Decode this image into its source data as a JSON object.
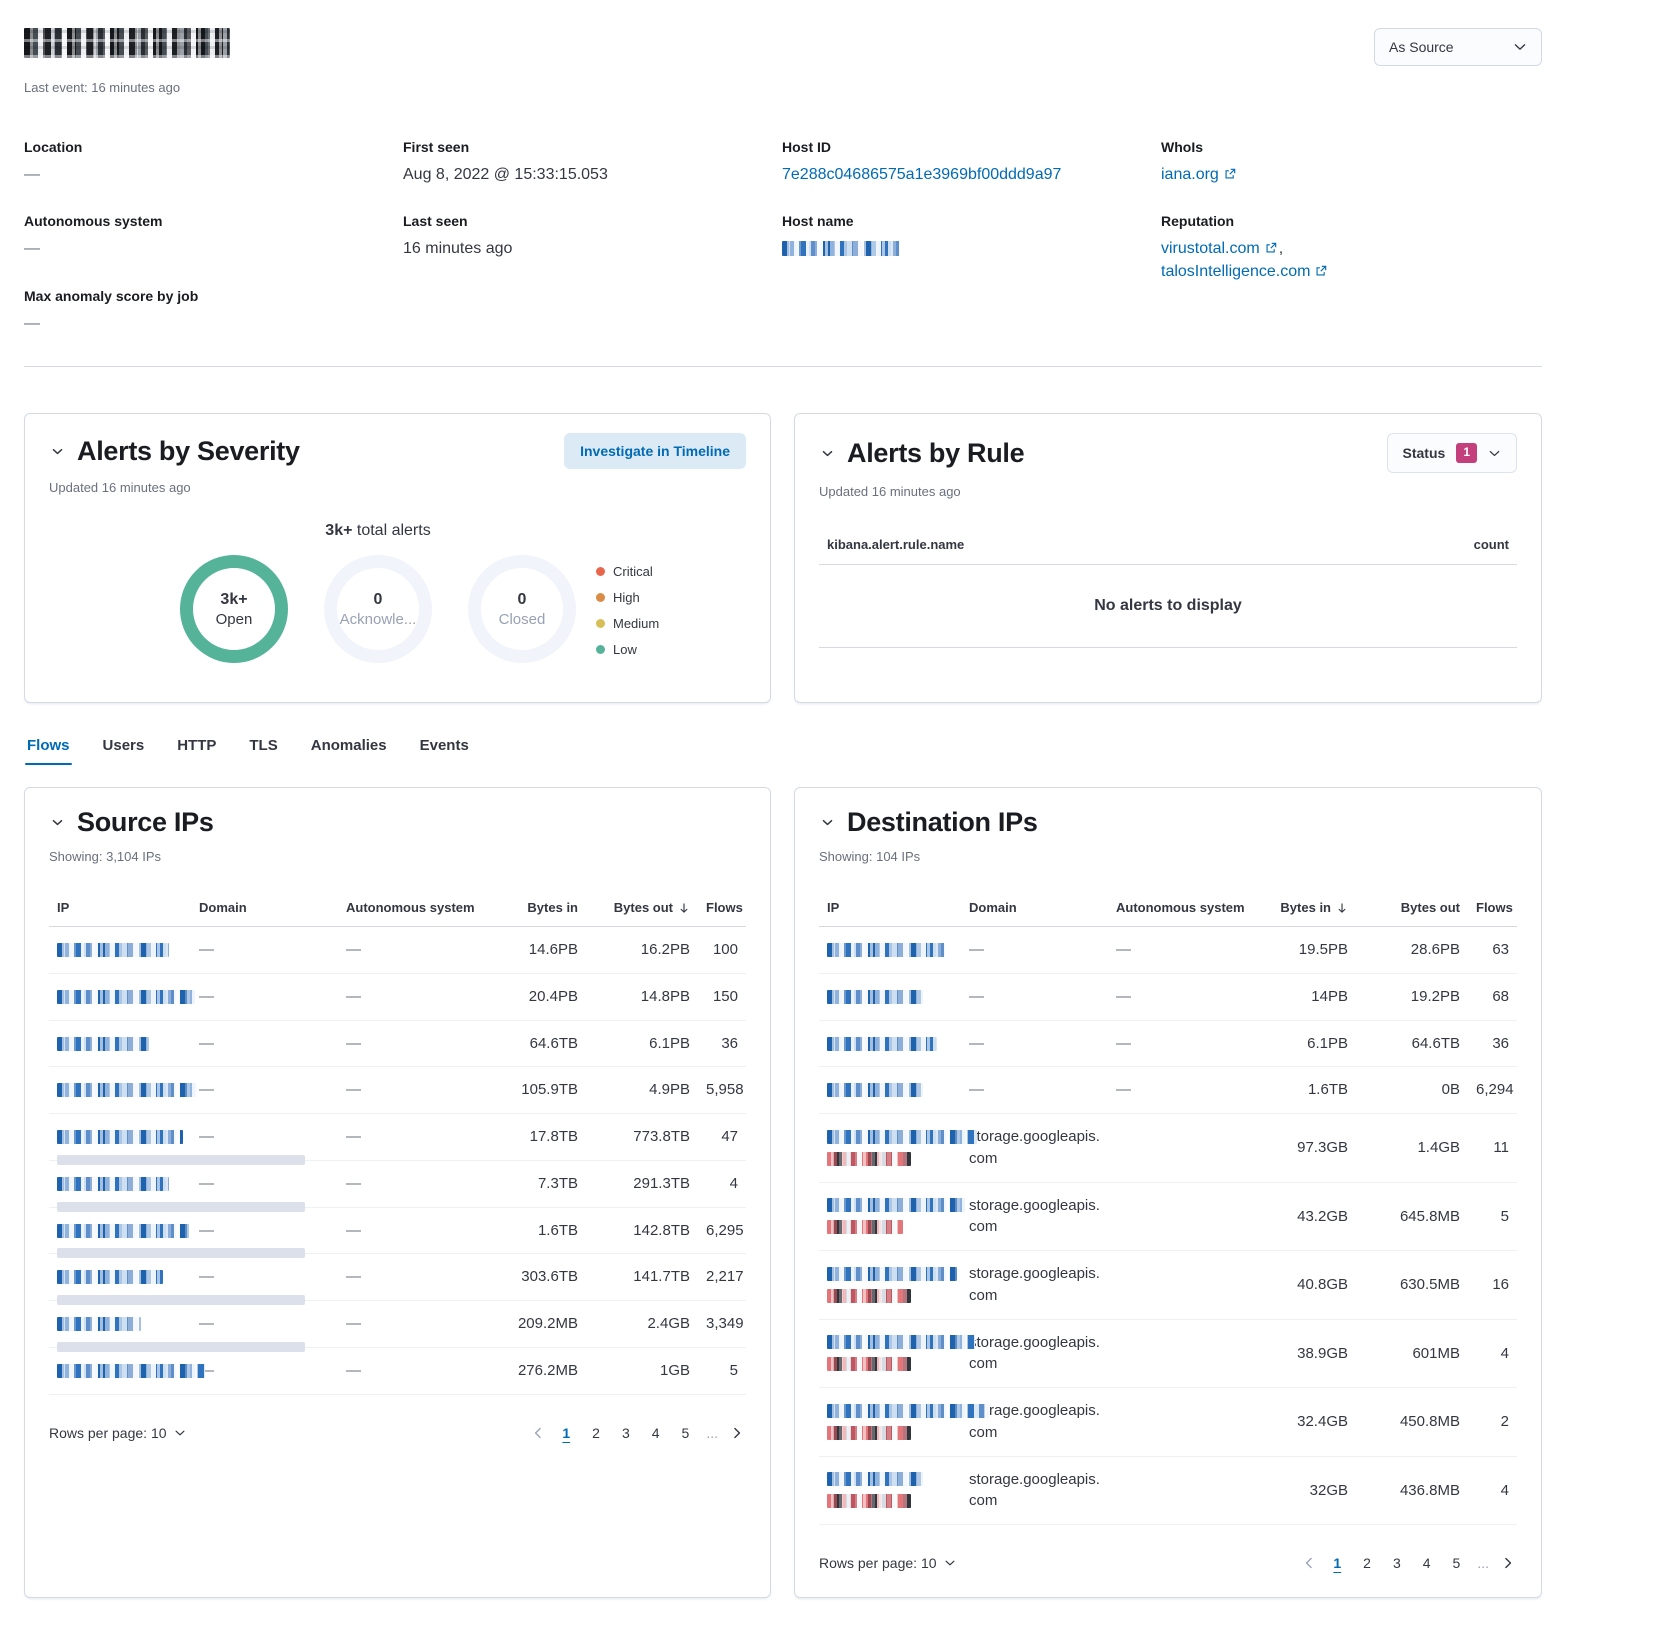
{
  "page": {
    "last_event": "Last event: 16 minutes ago",
    "view_selector_label": "As Source"
  },
  "overview": {
    "location_label": "Location",
    "location_value": "—",
    "autonomous_system_label": "Autonomous system",
    "autonomous_system_value": "—",
    "max_anomaly_label": "Max anomaly score by job",
    "max_anomaly_value": "—",
    "first_seen_label": "First seen",
    "first_seen_value": "Aug 8, 2022 @ 15:33:15.053",
    "last_seen_label": "Last seen",
    "last_seen_value": "16 minutes ago",
    "host_id_label": "Host ID",
    "host_id_value": "7e288c04686575a1e3969bf00ddd9a97",
    "host_name_label": "Host name",
    "whois_label": "WhoIs",
    "whois_value": "iana.org",
    "reputation_label": "Reputation",
    "reputation_link_1": "virustotal.com",
    "reputation_separator": ",",
    "reputation_link_2": "talosIntelligence.com"
  },
  "alerts_by_severity": {
    "title": "Alerts by Severity",
    "updated": "Updated 16 minutes ago",
    "investigate_button": "Investigate in Timeline",
    "total_value": "3k+",
    "total_label": "total alerts",
    "donuts": [
      {
        "value": "3k+",
        "label": "Open",
        "ring_color": "#54B399"
      },
      {
        "value": "0",
        "label": "Acknowle...",
        "ring_color": "#F1F4FA"
      },
      {
        "value": "0",
        "label": "Closed",
        "ring_color": "#F1F4FA"
      }
    ],
    "legend": [
      {
        "label": "Critical",
        "color": "#E7664C"
      },
      {
        "label": "High",
        "color": "#DA8B45"
      },
      {
        "label": "Medium",
        "color": "#D6BF57"
      },
      {
        "label": "Low",
        "color": "#54B399"
      }
    ]
  },
  "alerts_by_rule": {
    "title": "Alerts by Rule",
    "updated": "Updated 16 minutes ago",
    "status_button_label": "Status",
    "status_badge_count": "1",
    "column_rule_name": "kibana.alert.rule.name",
    "column_count": "count",
    "empty_message": "No alerts to display"
  },
  "tabs": [
    {
      "label": "Flows",
      "active": true
    },
    {
      "label": "Users"
    },
    {
      "label": "HTTP"
    },
    {
      "label": "TLS"
    },
    {
      "label": "Anomalies"
    },
    {
      "label": "Events"
    }
  ],
  "source_ips": {
    "title": "Source IPs",
    "showing": "Showing: 3,104 IPs",
    "columns": {
      "ip": "IP",
      "domain": "Domain",
      "autonomous_system": "Autonomous system",
      "bytes_in": "Bytes in",
      "bytes_out": "Bytes out",
      "flows": "Flows"
    },
    "sorted_by": "bytes_out",
    "rows": [
      {
        "ip_w": 112,
        "line2": null,
        "domain": "—",
        "as": "—",
        "bytes_in": "14.6PB",
        "bytes_out": "16.2PB",
        "flows": "100"
      },
      {
        "ip_w": 138,
        "line2": null,
        "domain": "—",
        "as": "—",
        "bytes_in": "20.4PB",
        "bytes_out": "14.8PB",
        "flows": "150"
      },
      {
        "ip_w": 92,
        "line2": null,
        "domain": "—",
        "as": "—",
        "bytes_in": "64.6TB",
        "bytes_out": "6.1PB",
        "flows": "36"
      },
      {
        "ip_w": 140,
        "line2": null,
        "domain": "—",
        "as": "—",
        "bytes_in": "105.9TB",
        "bytes_out": "4.9PB",
        "flows": "5,958"
      },
      {
        "ip_w": 126,
        "line2": "gray",
        "domain": "—",
        "as": "—",
        "bytes_in": "17.8TB",
        "bytes_out": "773.8TB",
        "flows": "47"
      },
      {
        "ip_w": 112,
        "line2": "gray",
        "domain": "—",
        "as": "—",
        "bytes_in": "7.3TB",
        "bytes_out": "291.3TB",
        "flows": "4"
      },
      {
        "ip_w": 132,
        "line2": "gray",
        "domain": "—",
        "as": "—",
        "bytes_in": "1.6TB",
        "bytes_out": "142.8TB",
        "flows": "6,295"
      },
      {
        "ip_w": 106,
        "line2": "gray",
        "domain": "—",
        "as": "—",
        "bytes_in": "303.6TB",
        "bytes_out": "141.7TB",
        "flows": "2,217"
      },
      {
        "ip_w": 84,
        "line2": "gray",
        "domain": "—",
        "as": "—",
        "bytes_in": "209.2MB",
        "bytes_out": "2.4GB",
        "flows": "3,349"
      },
      {
        "ip_w": 148,
        "line2": null,
        "domain": "—",
        "as": "—",
        "bytes_in": "276.2MB",
        "bytes_out": "1GB",
        "flows": "5"
      }
    ],
    "pager": {
      "rows_per_page": "Rows per page: 10",
      "pages": [
        "1",
        "2",
        "3",
        "4",
        "5"
      ],
      "ellipsis": "...",
      "active_page": "1"
    }
  },
  "destination_ips": {
    "title": "Destination IPs",
    "showing": "Showing: 104 IPs",
    "columns": {
      "ip": "IP",
      "domain": "Domain",
      "autonomous_system": "Autonomous system",
      "bytes_in": "Bytes in",
      "bytes_out": "Bytes out",
      "flows": "Flows"
    },
    "sorted_by": "bytes_in",
    "rows": [
      {
        "ip_w": 118,
        "line2": null,
        "domain": "—",
        "as": "—",
        "bytes_in": "19.5PB",
        "bytes_out": "28.6PB",
        "flows": "63"
      },
      {
        "ip_w": 96,
        "line2": null,
        "domain": "—",
        "as": "—",
        "bytes_in": "14PB",
        "bytes_out": "19.2PB",
        "flows": "68"
      },
      {
        "ip_w": 110,
        "line2": null,
        "domain": "—",
        "as": "—",
        "bytes_in": "6.1PB",
        "bytes_out": "64.6TB",
        "flows": "36"
      },
      {
        "ip_w": 96,
        "line2": null,
        "domain": "—",
        "as": "—",
        "bytes_in": "1.6TB",
        "bytes_out": "0B",
        "flows": "6,294"
      },
      {
        "ip_w": 150,
        "l2_w": 84,
        "line2": "red",
        "domain": "storage.googleapis.com",
        "as": "",
        "bytes_in": "97.3GB",
        "bytes_out": "1.4GB",
        "flows": "11"
      },
      {
        "ip_w": 138,
        "l2_w": 76,
        "line2": "red",
        "domain": "storage.googleapis.com",
        "as": "",
        "bytes_in": "43.2GB",
        "bytes_out": "645.8MB",
        "flows": "5"
      },
      {
        "ip_w": 130,
        "l2_w": 84,
        "line2": "red",
        "domain": "storage.googleapis.com",
        "as": "",
        "bytes_in": "40.8GB",
        "bytes_out": "630.5MB",
        "flows": "16"
      },
      {
        "ip_w": 148,
        "l2_w": 84,
        "line2": "red",
        "domain": "storage.googleapis.com",
        "as": "",
        "bytes_in": "38.9GB",
        "bytes_out": "601MB",
        "flows": "4"
      },
      {
        "ip_w": 162,
        "l2_w": 84,
        "line2": "red",
        "domain": "storage.googleapis.com",
        "as": "",
        "bytes_in": "32.4GB",
        "bytes_out": "450.8MB",
        "flows": "2"
      },
      {
        "ip_w": 96,
        "l2_w": 84,
        "line2": "red",
        "domain": "storage.googleapis.com",
        "as": "",
        "bytes_in": "32GB",
        "bytes_out": "436.8MB",
        "flows": "4"
      }
    ],
    "pager": {
      "rows_per_page": "Rows per page: 10",
      "pages": [
        "1",
        "2",
        "3",
        "4",
        "5"
      ],
      "ellipsis": "...",
      "active_page": "1"
    }
  }
}
